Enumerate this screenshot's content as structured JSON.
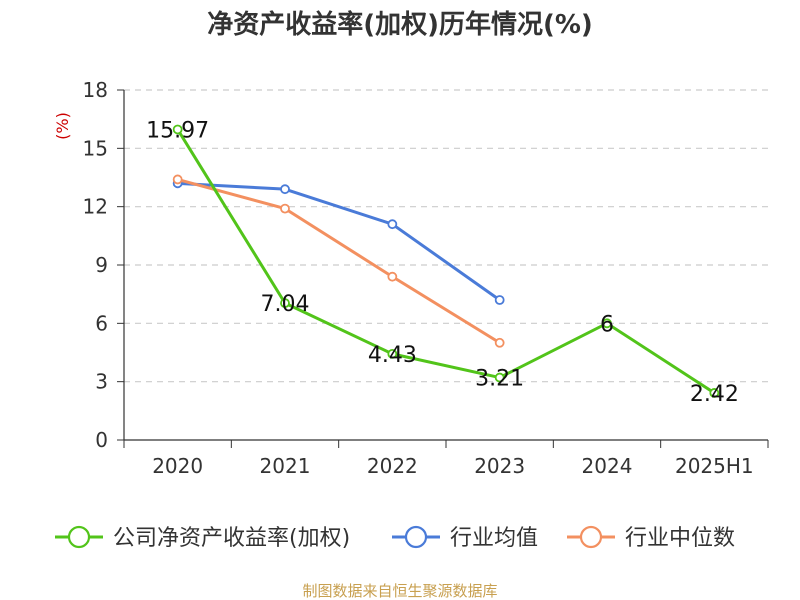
{
  "chart_data": {
    "type": "line",
    "title": "净资产收益率(加权)历年情况(%)",
    "ylabel": "(%)",
    "categories": [
      "2020",
      "2021",
      "2022",
      "2023",
      "2024",
      "2025H1"
    ],
    "ylim": [
      0,
      18
    ],
    "yticks": [
      0,
      3,
      6,
      9,
      12,
      15,
      18
    ],
    "grid": true,
    "legend_position": "bottom",
    "series": [
      {
        "name": "公司净资产收益率(加权)",
        "color": "#52c41a",
        "values": [
          15.97,
          7.04,
          4.43,
          3.21,
          6,
          2.42
        ],
        "labels": [
          "15.97",
          "7.04",
          "4.43",
          "3.21",
          "6",
          "2.42"
        ]
      },
      {
        "name": "行业均值",
        "color": "#4a7bd8",
        "values": [
          13.2,
          12.9,
          11.1,
          7.2,
          null,
          null
        ]
      },
      {
        "name": "行业中位数",
        "color": "#f39060",
        "values": [
          13.4,
          11.9,
          8.4,
          5.0,
          null,
          null
        ]
      }
    ]
  },
  "source": "制图数据来自恒生聚源数据库",
  "colors": {
    "unit": "#cc0000",
    "source": "#c8a050",
    "axis": "#333333",
    "grid": "#cccccc"
  }
}
